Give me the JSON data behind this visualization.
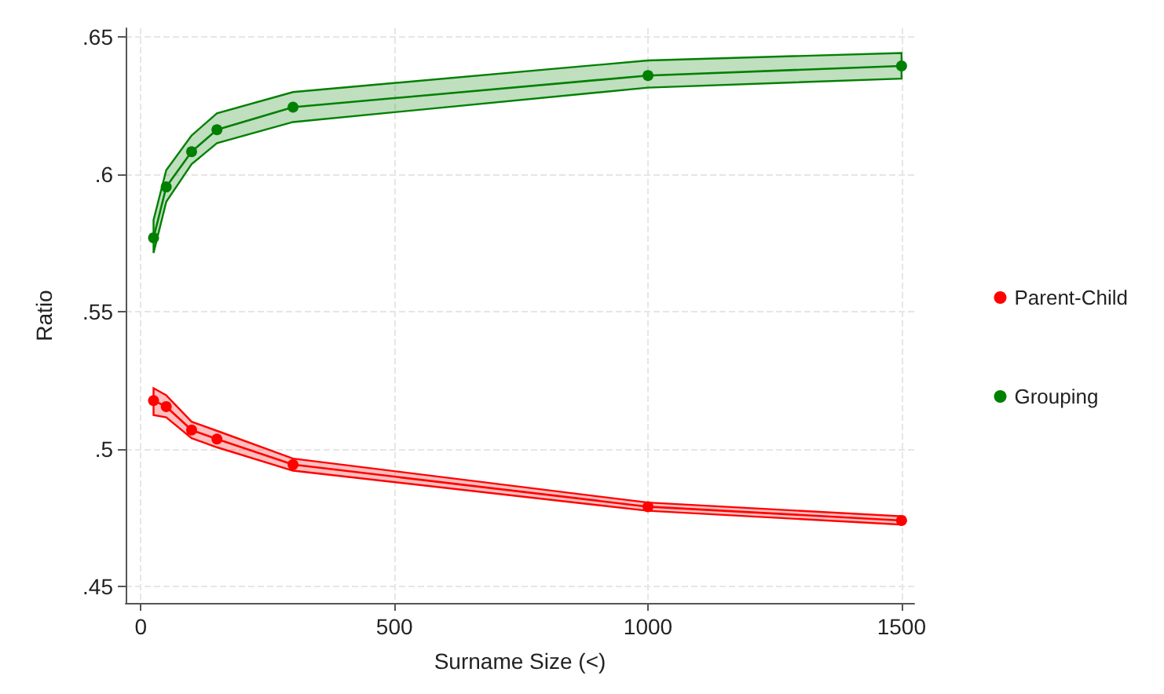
{
  "chart_data": {
    "type": "line",
    "xlabel": "Surname Size (<)",
    "ylabel": "Ratio",
    "x": [
      25,
      50,
      100,
      150,
      300,
      1000,
      1500
    ],
    "series": [
      {
        "name": "Parent-Child",
        "color": "#ff0000",
        "values": [
          0.5176,
          0.5154,
          0.5069,
          0.5036,
          0.4943,
          0.479,
          0.474
        ],
        "lower": [
          0.5123,
          0.5115,
          0.5039,
          0.5006,
          0.4921,
          0.4775,
          0.4725
        ],
        "upper": [
          0.5221,
          0.5195,
          0.5099,
          0.5066,
          0.4965,
          0.4805,
          0.4755
        ]
      },
      {
        "name": "Grouping",
        "color": "#008000",
        "values": [
          0.5768,
          0.5953,
          0.6081,
          0.6161,
          0.6243,
          0.6358,
          0.6393
        ],
        "lower": [
          0.5713,
          0.5899,
          0.6036,
          0.6112,
          0.6189,
          0.6314,
          0.6347
        ],
        "upper": [
          0.5833,
          0.6014,
          0.614,
          0.6221,
          0.6298,
          0.6413,
          0.644
        ]
      }
    ],
    "xlim": [
      -30,
      1525
    ],
    "xticks": [
      0,
      500,
      1000,
      1500
    ],
    "ylim": [
      0.444,
      0.653
    ],
    "yticks": [
      {
        "value": 0.45,
        "label": ".45"
      },
      {
        "value": 0.5,
        "label": ".5"
      },
      {
        "value": 0.55,
        "label": ".55"
      },
      {
        "value": 0.6,
        "label": ".6"
      },
      {
        "value": 0.65,
        "label": ".65"
      }
    ],
    "grid": true,
    "legend": "right",
    "marker": "circle",
    "line_style": "solid"
  }
}
